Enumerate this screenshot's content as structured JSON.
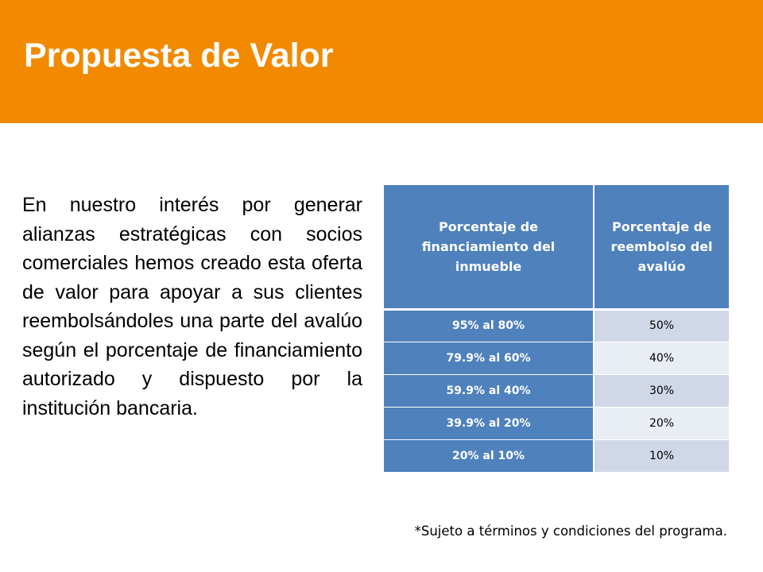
{
  "header": {
    "title": "Propuesta de Valor",
    "band_color": "#f18a00"
  },
  "body": {
    "paragraph": "En nuestro interés por generar alianzas estratégicas con socios comerciales hemos creado esta oferta de valor para apoyar a sus clientes reembolsándoles una parte del avalúo según el porcentaje de financiamiento autorizado y dispuesto por la institución bancaria."
  },
  "table": {
    "headers": [
      "Porcentaje de financiamiento del inmueble",
      "Porcentaje de reembolso del avalúo"
    ],
    "rows": [
      [
        "95% al 80%",
        "50%"
      ],
      [
        "79.9% al 60%",
        "40%"
      ],
      [
        "59.9% al 40%",
        "30%"
      ],
      [
        "39.9% al 20%",
        "20%"
      ],
      [
        "20% al 10%",
        "10%"
      ]
    ],
    "colors": {
      "header_bg": "#4f81bd",
      "row_band_1": "#d0d8e8",
      "row_band_2": "#e9edf4"
    }
  },
  "footnote": "*Sujeto a términos y condiciones del programa."
}
